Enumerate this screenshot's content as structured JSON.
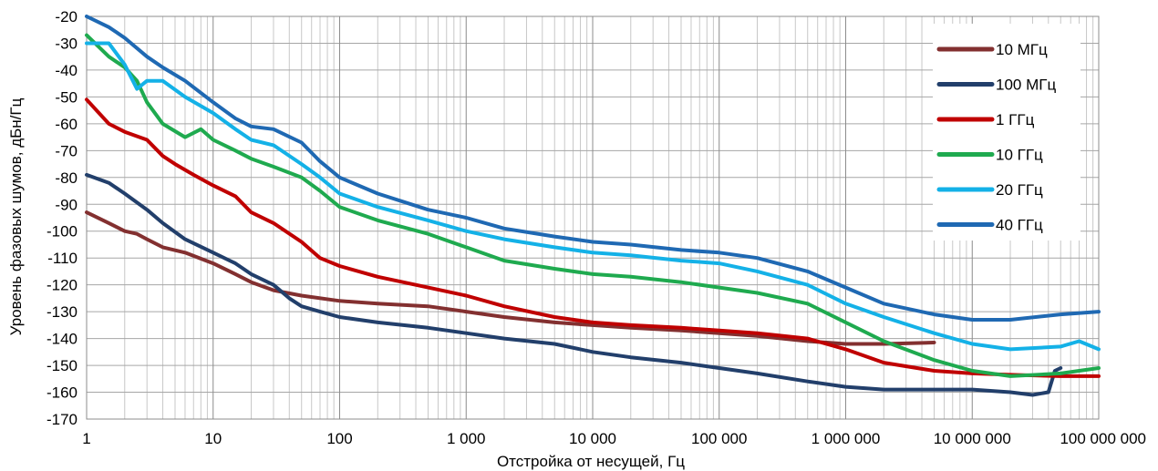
{
  "chart_data": {
    "type": "line",
    "title": "",
    "xlabel": "Отстройка от несущей, Гц",
    "ylabel": "Уровень фазовых шумов, дБн/Гц",
    "x_scale": "log",
    "xlim": [
      1,
      100000000
    ],
    "ylim": [
      -170,
      -20
    ],
    "grid": true,
    "legend_position": "top-right",
    "x_ticks": [
      {
        "value": 1,
        "label": "1"
      },
      {
        "value": 10,
        "label": "10"
      },
      {
        "value": 100,
        "label": "100"
      },
      {
        "value": 1000,
        "label": "1 000"
      },
      {
        "value": 10000,
        "label": "10 000"
      },
      {
        "value": 100000,
        "label": "100 000"
      },
      {
        "value": 1000000,
        "label": "1 000 000"
      },
      {
        "value": 10000000,
        "label": "10 000 000"
      },
      {
        "value": 100000000,
        "label": "100 000 000"
      }
    ],
    "y_ticks": [
      {
        "value": -20,
        "label": "-20"
      },
      {
        "value": -30,
        "label": "-30"
      },
      {
        "value": -40,
        "label": "-40"
      },
      {
        "value": -50,
        "label": "-50"
      },
      {
        "value": -60,
        "label": "-60"
      },
      {
        "value": -70,
        "label": "-70"
      },
      {
        "value": -80,
        "label": "-80"
      },
      {
        "value": -90,
        "label": "-90"
      },
      {
        "value": -100,
        "label": "-100"
      },
      {
        "value": -110,
        "label": "-110"
      },
      {
        "value": -120,
        "label": "-120"
      },
      {
        "value": -130,
        "label": "-130"
      },
      {
        "value": -140,
        "label": "-140"
      },
      {
        "value": -150,
        "label": "-150"
      },
      {
        "value": -160,
        "label": "-160"
      },
      {
        "value": -170,
        "label": "-170"
      }
    ],
    "series": [
      {
        "name": "10 МГц",
        "color": "#833030",
        "points": [
          [
            1,
            -93
          ],
          [
            1.5,
            -97
          ],
          [
            2,
            -100
          ],
          [
            2.5,
            -101
          ],
          [
            3,
            -103
          ],
          [
            4,
            -106
          ],
          [
            6,
            -108
          ],
          [
            10,
            -112
          ],
          [
            15,
            -116
          ],
          [
            20,
            -119
          ],
          [
            30,
            -122
          ],
          [
            50,
            -124
          ],
          [
            100,
            -126
          ],
          [
            200,
            -127
          ],
          [
            500,
            -128
          ],
          [
            1000,
            -130
          ],
          [
            2000,
            -132
          ],
          [
            5000,
            -134
          ],
          [
            10000,
            -135
          ],
          [
            20000,
            -136
          ],
          [
            50000,
            -137
          ],
          [
            100000,
            -138
          ],
          [
            200000,
            -139
          ],
          [
            500000,
            -141
          ],
          [
            1000000,
            -142
          ],
          [
            2000000,
            -142
          ],
          [
            5000000,
            -141.5
          ]
        ]
      },
      {
        "name": "100 МГц",
        "color": "#223F6B",
        "points": [
          [
            1,
            -79
          ],
          [
            1.5,
            -82
          ],
          [
            2,
            -86
          ],
          [
            3,
            -92
          ],
          [
            4,
            -97
          ],
          [
            6,
            -103
          ],
          [
            10,
            -108
          ],
          [
            15,
            -112
          ],
          [
            20,
            -116
          ],
          [
            30,
            -120
          ],
          [
            40,
            -125
          ],
          [
            50,
            -128
          ],
          [
            70,
            -130
          ],
          [
            100,
            -132
          ],
          [
            200,
            -134
          ],
          [
            500,
            -136
          ],
          [
            1000,
            -138
          ],
          [
            2000,
            -140
          ],
          [
            5000,
            -142
          ],
          [
            10000,
            -145
          ],
          [
            20000,
            -147
          ],
          [
            50000,
            -149
          ],
          [
            100000,
            -151
          ],
          [
            200000,
            -153
          ],
          [
            500000,
            -156
          ],
          [
            1000000,
            -158
          ],
          [
            2000000,
            -159
          ],
          [
            5000000,
            -159
          ],
          [
            10000000,
            -159
          ],
          [
            20000000,
            -160
          ],
          [
            30000000,
            -161
          ],
          [
            40000000,
            -160
          ],
          [
            45000000,
            -152
          ],
          [
            50000000,
            -151
          ]
        ]
      },
      {
        "name": "1 ГГц",
        "color": "#C00000",
        "points": [
          [
            1,
            -51
          ],
          [
            1.5,
            -60
          ],
          [
            2,
            -63
          ],
          [
            3,
            -66
          ],
          [
            4,
            -72
          ],
          [
            5,
            -75
          ],
          [
            7,
            -79
          ],
          [
            10,
            -83
          ],
          [
            15,
            -87
          ],
          [
            20,
            -93
          ],
          [
            30,
            -97
          ],
          [
            50,
            -104
          ],
          [
            70,
            -110
          ],
          [
            100,
            -113
          ],
          [
            200,
            -117
          ],
          [
            500,
            -121
          ],
          [
            1000,
            -124
          ],
          [
            2000,
            -128
          ],
          [
            5000,
            -132
          ],
          [
            10000,
            -134
          ],
          [
            20000,
            -135
          ],
          [
            50000,
            -136
          ],
          [
            100000,
            -137
          ],
          [
            200000,
            -138
          ],
          [
            500000,
            -140
          ],
          [
            1000000,
            -144
          ],
          [
            2000000,
            -149
          ],
          [
            5000000,
            -152
          ],
          [
            10000000,
            -153
          ],
          [
            20000000,
            -153.5
          ],
          [
            50000000,
            -154
          ],
          [
            100000000,
            -154
          ]
        ]
      },
      {
        "name": "10 ГГц",
        "color": "#1FAA4F",
        "points": [
          [
            1,
            -27
          ],
          [
            1.5,
            -35
          ],
          [
            2,
            -39
          ],
          [
            2.5,
            -44
          ],
          [
            3,
            -52
          ],
          [
            4,
            -60
          ],
          [
            6,
            -65
          ],
          [
            8,
            -62
          ],
          [
            10,
            -66
          ],
          [
            15,
            -70
          ],
          [
            20,
            -73
          ],
          [
            30,
            -76
          ],
          [
            50,
            -80
          ],
          [
            70,
            -85
          ],
          [
            100,
            -91
          ],
          [
            200,
            -96
          ],
          [
            500,
            -101
          ],
          [
            1000,
            -106
          ],
          [
            2000,
            -111
          ],
          [
            5000,
            -114
          ],
          [
            10000,
            -116
          ],
          [
            20000,
            -117
          ],
          [
            50000,
            -119
          ],
          [
            100000,
            -121
          ],
          [
            200000,
            -123
          ],
          [
            500000,
            -127
          ],
          [
            1000000,
            -134
          ],
          [
            2000000,
            -141
          ],
          [
            5000000,
            -148
          ],
          [
            10000000,
            -152
          ],
          [
            20000000,
            -154
          ],
          [
            50000000,
            -153
          ],
          [
            100000000,
            -151
          ]
        ]
      },
      {
        "name": "20 ГГц",
        "color": "#14B1E7",
        "points": [
          [
            1,
            -30
          ],
          [
            1.5,
            -30
          ],
          [
            2,
            -38
          ],
          [
            2.5,
            -47
          ],
          [
            3,
            -44
          ],
          [
            4,
            -44
          ],
          [
            6,
            -50
          ],
          [
            10,
            -56
          ],
          [
            15,
            -62
          ],
          [
            20,
            -66
          ],
          [
            30,
            -68
          ],
          [
            50,
            -75
          ],
          [
            70,
            -80
          ],
          [
            100,
            -86
          ],
          [
            200,
            -91
          ],
          [
            500,
            -96
          ],
          [
            1000,
            -100
          ],
          [
            2000,
            -103
          ],
          [
            5000,
            -106
          ],
          [
            10000,
            -108
          ],
          [
            20000,
            -109
          ],
          [
            50000,
            -111
          ],
          [
            100000,
            -112
          ],
          [
            200000,
            -115
          ],
          [
            500000,
            -120
          ],
          [
            1000000,
            -127
          ],
          [
            2000000,
            -132
          ],
          [
            5000000,
            -138
          ],
          [
            10000000,
            -142
          ],
          [
            20000000,
            -144
          ],
          [
            50000000,
            -143
          ],
          [
            70000000,
            -141
          ],
          [
            100000000,
            -144
          ]
        ]
      },
      {
        "name": "40 ГГц",
        "color": "#1F69B3",
        "points": [
          [
            1,
            -20
          ],
          [
            1.5,
            -24
          ],
          [
            2,
            -28
          ],
          [
            3,
            -35
          ],
          [
            4,
            -39
          ],
          [
            6,
            -44
          ],
          [
            10,
            -52
          ],
          [
            15,
            -58
          ],
          [
            20,
            -61
          ],
          [
            30,
            -62
          ],
          [
            50,
            -67
          ],
          [
            70,
            -74
          ],
          [
            100,
            -80
          ],
          [
            200,
            -86
          ],
          [
            500,
            -92
          ],
          [
            1000,
            -95
          ],
          [
            2000,
            -99
          ],
          [
            5000,
            -102
          ],
          [
            10000,
            -104
          ],
          [
            20000,
            -105
          ],
          [
            50000,
            -107
          ],
          [
            100000,
            -108
          ],
          [
            200000,
            -110
          ],
          [
            500000,
            -115
          ],
          [
            1000000,
            -121
          ],
          [
            2000000,
            -127
          ],
          [
            5000000,
            -131
          ],
          [
            10000000,
            -133
          ],
          [
            20000000,
            -133
          ],
          [
            50000000,
            -131
          ],
          [
            100000000,
            -130
          ]
        ]
      }
    ]
  }
}
